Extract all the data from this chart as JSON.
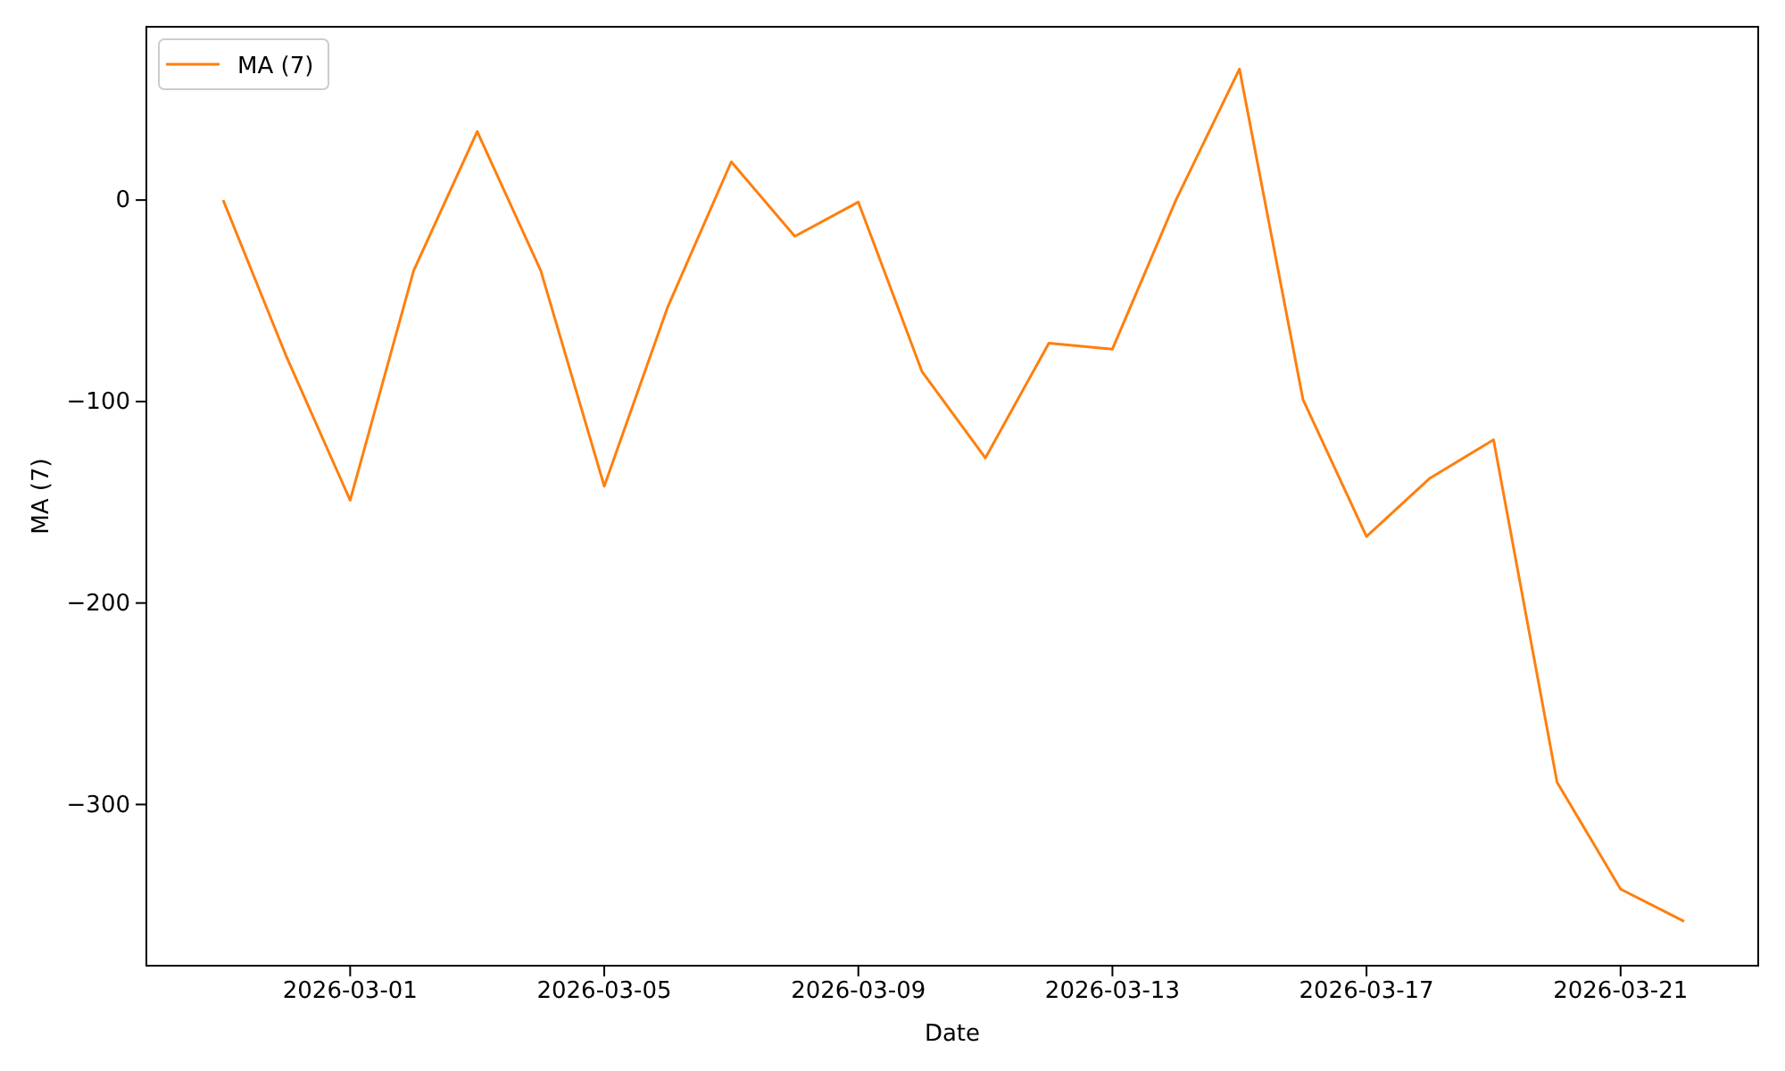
{
  "chart_data": {
    "type": "line",
    "xlabel": "Date",
    "ylabel": "MA (7)",
    "legend": "top left",
    "grid": false,
    "x": [
      "2026-02-27",
      "2026-02-28",
      "2026-03-01",
      "2026-03-02",
      "2026-03-03",
      "2026-03-04",
      "2026-03-05",
      "2026-03-06",
      "2026-03-07",
      "2026-03-08",
      "2026-03-09",
      "2026-03-10",
      "2026-03-11",
      "2026-03-12",
      "2026-03-13",
      "2026-03-14",
      "2026-03-15",
      "2026-03-16",
      "2026-03-17",
      "2026-03-18",
      "2026-03-19",
      "2026-03-20",
      "2026-03-21",
      "2026-03-22"
    ],
    "series": [
      {
        "name": "MA (7)",
        "color": "#ff7f0e",
        "values": [
          0,
          -78,
          -149,
          -35,
          34,
          -35,
          -142,
          -53,
          19,
          -18,
          -1,
          -85,
          -128,
          -71,
          -74,
          0,
          65,
          -99,
          -167,
          -138,
          -119,
          -289,
          -342,
          -358
        ]
      }
    ],
    "xlim": [
      "2026-02-25T19:00",
      "2026-03-23T04:00"
    ],
    "xticks": [
      "2026-03-01",
      "2026-03-05",
      "2026-03-09",
      "2026-03-13",
      "2026-03-17",
      "2026-03-21"
    ],
    "ylim": [
      -380,
      86
    ],
    "yticks": [
      {
        "value": -300,
        "label": "−300"
      },
      {
        "value": -200,
        "label": "−200"
      },
      {
        "value": -100,
        "label": "−100"
      },
      0
    ]
  }
}
